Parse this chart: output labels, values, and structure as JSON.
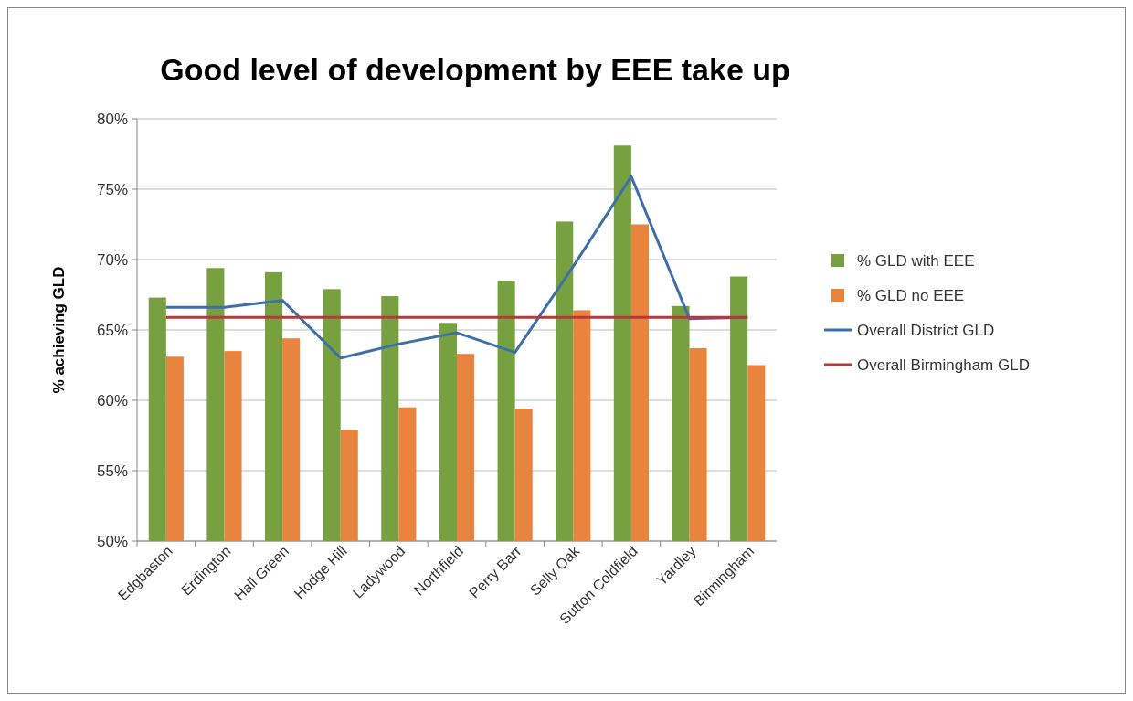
{
  "chart_data": {
    "type": "bar",
    "title": "Good level of development by EEE take up",
    "ylabel": "% achieving GLD",
    "categories": [
      "Edgbaston",
      "Erdington",
      "Hall Green",
      "Hodge Hill",
      "Ladywood",
      "Northfield",
      "Perry Barr",
      "Selly Oak",
      "Sutton Coldfield",
      "Yardley",
      "Birmingham"
    ],
    "series": [
      {
        "name": "% GLD with EEE",
        "color": "#77a140",
        "values": [
          67.3,
          69.4,
          69.1,
          67.9,
          67.4,
          65.5,
          68.5,
          72.7,
          78.1,
          66.7,
          68.8
        ]
      },
      {
        "name": "% GLD no EEE",
        "color": "#e8843d",
        "values": [
          63.1,
          63.5,
          64.4,
          57.9,
          59.5,
          63.3,
          59.4,
          66.4,
          72.5,
          63.7,
          62.5
        ]
      },
      {
        "name": "Overall District GLD",
        "type": "line",
        "color": "#3f6fa8",
        "values": [
          66.6,
          66.6,
          67.1,
          63.0,
          64.0,
          64.8,
          63.4,
          69.5,
          75.9,
          65.8,
          65.9
        ]
      },
      {
        "name": "Overall Birmingham GLD",
        "type": "line",
        "color": "#b8373a",
        "values": [
          65.9,
          65.9,
          65.9,
          65.9,
          65.9,
          65.9,
          65.9,
          65.9,
          65.9,
          65.9,
          65.9
        ]
      }
    ],
    "ylim": [
      50,
      80
    ],
    "yticks": [
      {
        "value": 50,
        "label": "50%"
      },
      {
        "value": 55,
        "label": "55%"
      },
      {
        "value": 60,
        "label": "60%"
      },
      {
        "value": 65,
        "label": "65%"
      },
      {
        "value": 70,
        "label": "70%"
      },
      {
        "value": 75,
        "label": "75%"
      },
      {
        "value": 80,
        "label": "80%"
      }
    ],
    "grid": "y",
    "legend": "right",
    "marker": "none",
    "line_style": "solid"
  }
}
